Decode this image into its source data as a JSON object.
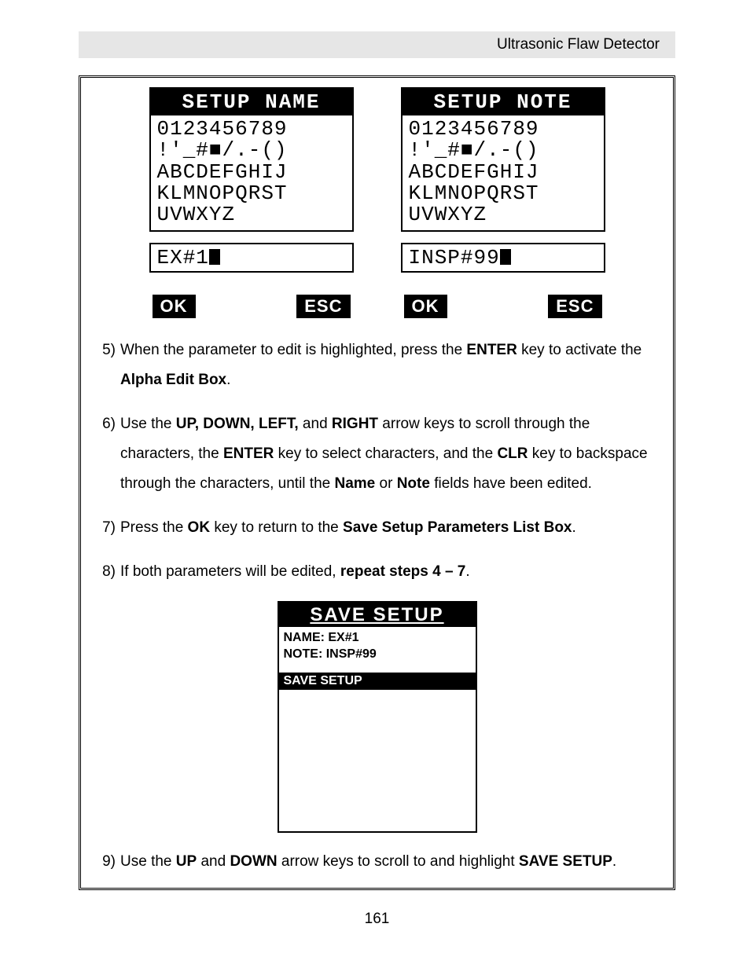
{
  "header": {
    "title": "Ultrasonic Flaw Detector"
  },
  "lcd_panels": [
    {
      "title": "SETUP NAME",
      "char_lines": [
        "0123456789",
        "!'_#■/.-()",
        "ABCDEFGHIJ",
        "KLMNOPQRST",
        "UVWXYZ"
      ],
      "input_value": "EX#1",
      "buttons": {
        "ok": "OK",
        "esc": "ESC"
      }
    },
    {
      "title": "SETUP NOTE",
      "char_lines": [
        "0123456789",
        "!'_#■/.-()",
        "ABCDEFGHIJ",
        "KLMNOPQRST",
        "UVWXYZ"
      ],
      "input_value": "INSP#99",
      "buttons": {
        "ok": "OK",
        "esc": "ESC"
      }
    }
  ],
  "instructions": [
    {
      "num": "5)",
      "html": "When the parameter to edit is highlighted, press the <b>ENTER</b> key to activate the <b>Alpha Edit Box</b>."
    },
    {
      "num": "6)",
      "html": "Use the <b>UP, DOWN, LEFT,</b> and <b>RIGHT</b> arrow keys to scroll through the characters, the <b>ENTER</b> key to select characters, and the <b>CLR</b> key to backspace through the characters, until the <b>Name</b> or <b>Note</b> fields have been edited."
    },
    {
      "num": "7)",
      "html": "Press the <b>OK</b> key to return to the <b>Save Setup Parameters List Box</b>."
    },
    {
      "num": "8)",
      "html": "If both parameters will be edited, <b>repeat steps 4 – 7</b>."
    }
  ],
  "save_box": {
    "title": "SAVE SETUP",
    "name_line": "NAME: EX#1",
    "note_line": "NOTE: INSP#99",
    "highlight": "SAVE SETUP"
  },
  "instruction9": {
    "num": "9)",
    "html": "Use the <b>UP</b> and <b>DOWN</b> arrow keys to scroll to and highlight <b>SAVE SETUP</b>."
  },
  "page_number": "161",
  "colors": {
    "bg": "#ffffff",
    "text": "#000000",
    "band": "#e6e6e6"
  }
}
